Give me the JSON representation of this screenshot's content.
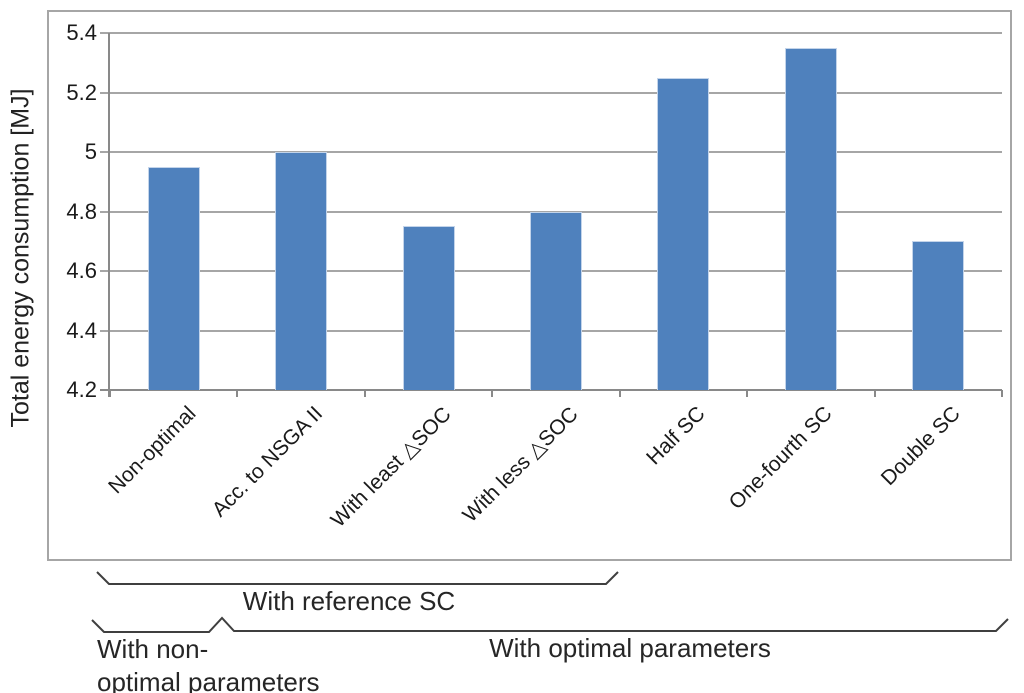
{
  "chart_data": {
    "type": "bar",
    "title": "",
    "categories": [
      "Non-optimal",
      "Acc. to NSGA II",
      "With least △SOC",
      "With less △SOC",
      "Half SC",
      "One-fourth SC",
      "Double SC"
    ],
    "values": [
      4.95,
      5.0,
      4.75,
      4.8,
      5.25,
      5.35,
      4.7
    ],
    "xlabel": "",
    "ylabel": "Total energy consumption [MJ]",
    "ylim": [
      4.2,
      5.4
    ],
    "yticks": [
      4.2,
      4.4,
      4.6,
      4.8,
      5,
      5.2,
      5.4
    ],
    "grid": true,
    "legend": false,
    "bar_color": "#4f81bd"
  },
  "annotations": {
    "reference_sc": "With reference SC",
    "non_optimal_line1": "With non-",
    "non_optimal_line2": "optimal parameters",
    "optimal": "With optimal parameters"
  },
  "colors": {
    "bar": "#4f81bd",
    "bar_edge": "#c3d4ea",
    "gridline": "#a6a6a6",
    "axis": "#898989",
    "chart_border": "#a6a6a6",
    "brace": "#3f3f3f",
    "text": "#1a1a1a"
  }
}
